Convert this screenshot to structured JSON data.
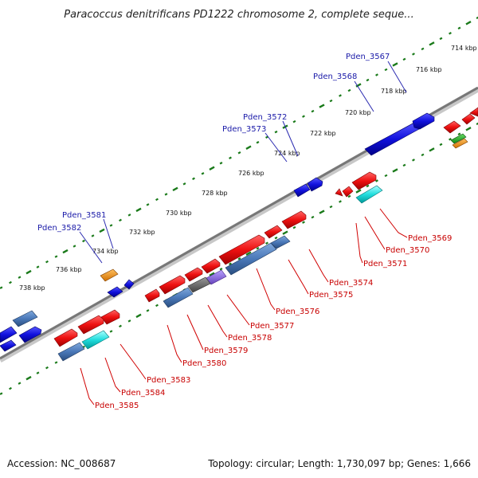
{
  "title": "Paracoccus denitrificans PD1222 chromosome 2, complete seque...",
  "footer": {
    "accession": "Accession: NC_008687",
    "topology": "Topology: circular; Length: 1,730,097 bp; Genes: 1,666"
  },
  "scale_ticks": [
    "714 kbp",
    "716 kbp",
    "718 kbp",
    "720 kbp",
    "722 kbp",
    "724 kbp",
    "726 kbp",
    "728 kbp",
    "730 kbp",
    "732 kbp",
    "734 kbp",
    "736 kbp",
    "738 kbp"
  ],
  "top_gene_labels": [
    "Pden_3567",
    "Pden_3568",
    "Pden_3572",
    "Pden_3573",
    "Pden_3581",
    "Pden_3582"
  ],
  "bottom_gene_labels": [
    "Pden_3569",
    "Pden_3570",
    "Pden_3571",
    "Pden_3574",
    "Pden_3575",
    "Pden_3576",
    "Pden_3577",
    "Pden_3578",
    "Pden_3579",
    "Pden_3580",
    "Pden_3583",
    "Pden_3584",
    "Pden_3585"
  ],
  "colors": {
    "forward_gene": "#ee1111",
    "reverse_gene": "#1111dd",
    "steel_gene": "#4a78b8",
    "cyan_gene": "#22dddd",
    "orange_gene": "#f08c00",
    "gray_gene": "#666666",
    "purple_gene": "#8866dd",
    "green_gene": "#22aa22",
    "backbone": "#888888",
    "tick": "#1a7a1a"
  }
}
